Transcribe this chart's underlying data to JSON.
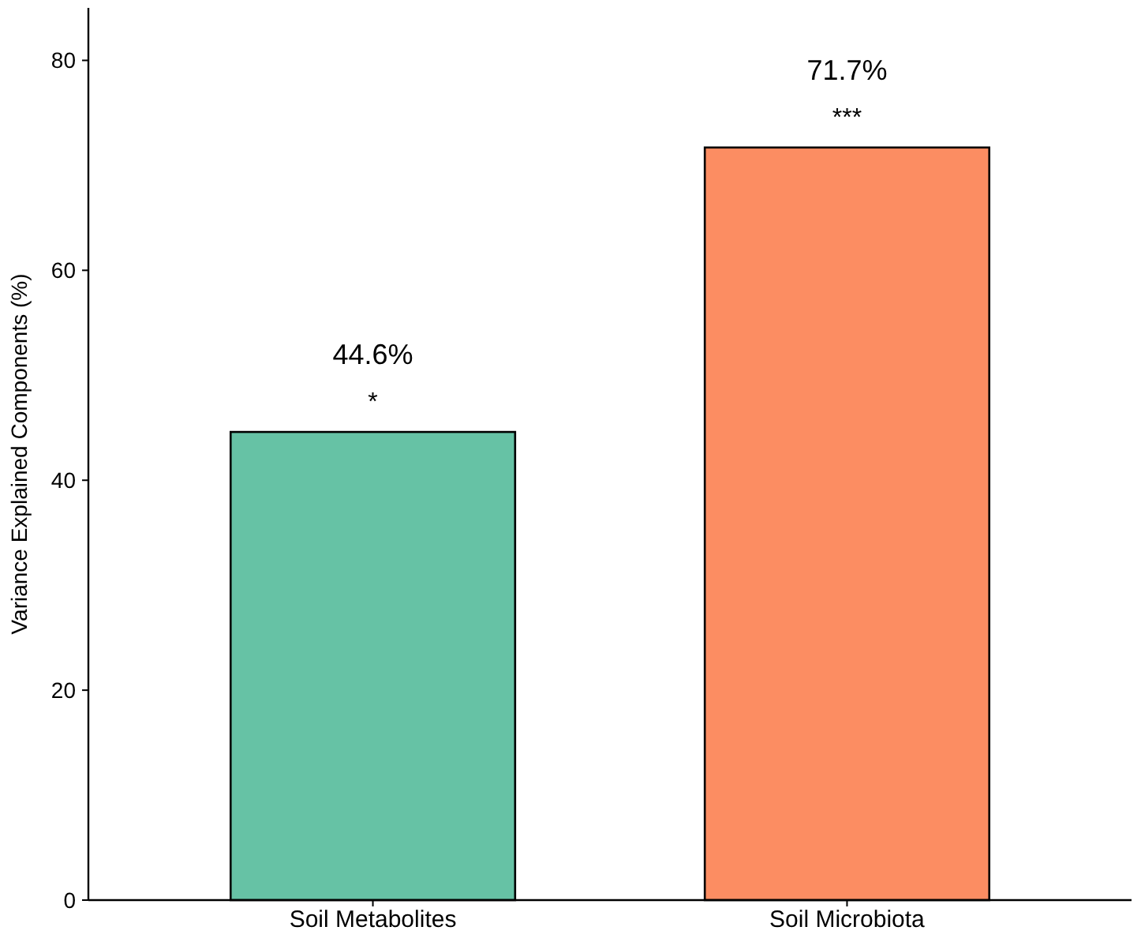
{
  "chart_data": {
    "type": "bar",
    "ylabel": "Variance Explained Components (%)",
    "categories": [
      "Soil Metabolites",
      "Soil Microbiota"
    ],
    "values": [
      44.6,
      71.7
    ],
    "colors": [
      "#66c2a5",
      "#fc8d62"
    ],
    "value_labels": [
      "44.6%",
      "71.7%"
    ],
    "annotations": [
      {
        "text": "*",
        "x": "Soil Metabolites",
        "y": 44.6
      },
      {
        "text": "***",
        "x": "Soil Microbiota",
        "y": 71.7
      }
    ],
    "ylim": [
      0,
      85
    ],
    "yticks": [
      0,
      20,
      40,
      60,
      80
    ],
    "grid": false
  }
}
